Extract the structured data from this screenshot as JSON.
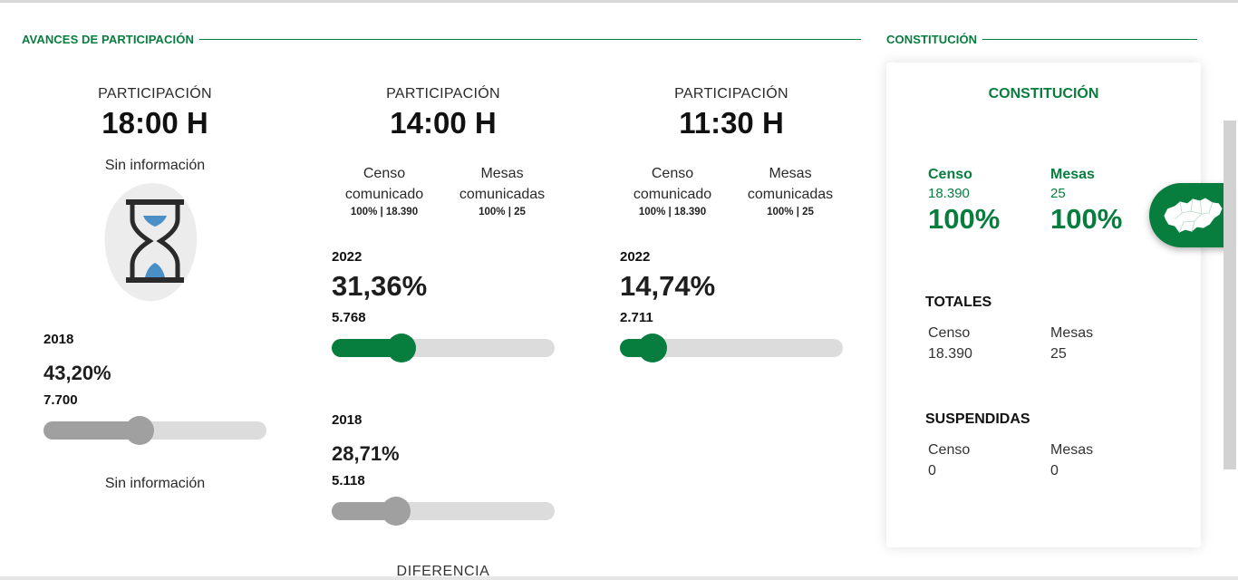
{
  "avances": {
    "title": "AVANCES DE PARTICIPACIÓN",
    "columns": [
      {
        "label": "PARTICIPACIÓN",
        "hour": "18:00 H",
        "info_top": "Sin información",
        "y2018": {
          "year": "2018",
          "pct": "43,20%",
          "count": "7.700",
          "level": 0.432
        },
        "info_bottom": "Sin información"
      },
      {
        "label": "PARTICIPACIÓN",
        "hour": "14:00 H",
        "censo_label": "Censo comunicado",
        "censo_value": "100% | 18.390",
        "mesas_label": "Mesas comunicadas",
        "mesas_value": "100% | 25",
        "y2022": {
          "year": "2022",
          "pct": "31,36%",
          "count": "5.768",
          "level": 0.3136
        },
        "y2018": {
          "year": "2018",
          "pct": "28,71%",
          "count": "5.118",
          "level": 0.2871
        },
        "diferencia": "DIFERENCIA"
      },
      {
        "label": "PARTICIPACIÓN",
        "hour": "11:30 H",
        "censo_label": "Censo comunicado",
        "censo_value": "100% | 18.390",
        "mesas_label": "Mesas comunicadas",
        "mesas_value": "100% | 25",
        "y2022": {
          "year": "2022",
          "pct": "14,74%",
          "count": "2.711",
          "level": 0.1474
        }
      }
    ]
  },
  "constitucion": {
    "section_title": "CONSTITUCIÓN",
    "card_title": "CONSTITUCIÓN",
    "censo": {
      "label": "Censo",
      "value": "18.390",
      "pct": "100%"
    },
    "mesas": {
      "label": "Mesas",
      "value": "25",
      "pct": "100%"
    },
    "totales": {
      "title": "TOTALES",
      "censo_label": "Censo",
      "censo_value": "18.390",
      "mesas_label": "Mesas",
      "mesas_value": "25"
    },
    "suspendidas": {
      "title": "SUSPENDIDAS",
      "censo_label": "Censo",
      "censo_value": "0",
      "mesas_label": "Mesas",
      "mesas_value": "0"
    }
  },
  "icons": {
    "hourglass": "hourglass-icon",
    "map": "andalucia-map-icon"
  },
  "colors": {
    "accent": "#077d3e",
    "grey_slider": "#a0a0a0",
    "track": "#dcdcdc"
  }
}
